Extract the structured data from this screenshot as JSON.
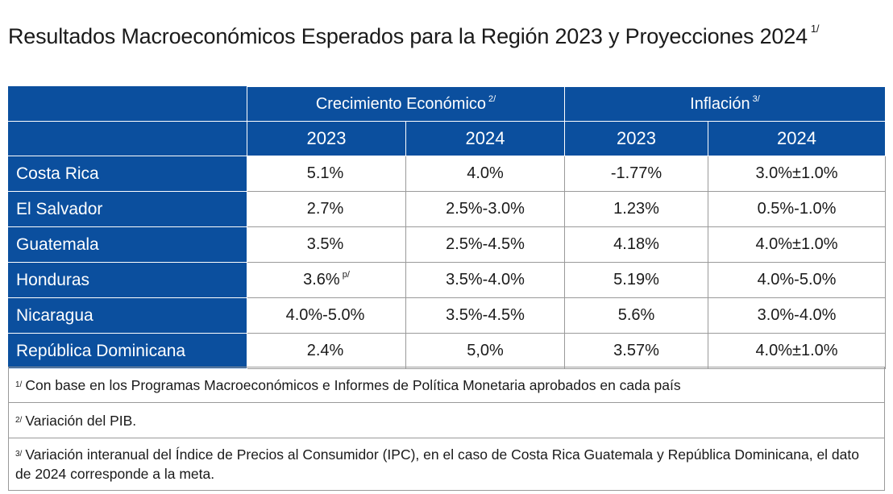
{
  "title": "Resultados Macroeconómicos Esperados para la Región 2023 y Proyecciones 2024",
  "title_note": "1/",
  "headers": {
    "group1": "Crecimiento Económico",
    "group1_note": "2/",
    "group2": "Inflación",
    "group2_note": "3/",
    "years": [
      "2023",
      "2024",
      "2023",
      "2024"
    ]
  },
  "rows": [
    {
      "country": "Costa Rica",
      "g2023": "5.1%",
      "g2023_note": "",
      "g2024": "4.0%",
      "i2023": "-1.77%",
      "i2024": "3.0%±1.0%"
    },
    {
      "country": "El Salvador",
      "g2023": "2.7%",
      "g2023_note": "",
      "g2024": "2.5%-3.0%",
      "i2023": "1.23%",
      "i2024": "0.5%-1.0%"
    },
    {
      "country": "Guatemala",
      "g2023": "3.5%",
      "g2023_note": "",
      "g2024": "2.5%-4.5%",
      "i2023": "4.18%",
      "i2024": "4.0%±1.0%"
    },
    {
      "country": "Honduras",
      "g2023": "3.6%",
      "g2023_note": "p/",
      "g2024": "3.5%-4.0%",
      "i2023": "5.19%",
      "i2024": "4.0%-5.0%"
    },
    {
      "country": "Nicaragua",
      "g2023": "4.0%-5.0%",
      "g2023_note": "",
      "g2024": "3.5%-4.5%",
      "i2023": "5.6%",
      "i2024": "3.0%-4.0%"
    },
    {
      "country": "República Dominicana",
      "g2023": "2.4%",
      "g2023_note": "",
      "g2024": "5,0%",
      "i2023": "3.57%",
      "i2024": "4.0%±1.0%"
    }
  ],
  "notes": [
    {
      "mark": "1/",
      "text": "Con base en los Programas Macroeconómicos e Informes de Política Monetaria aprobados en cada país"
    },
    {
      "mark": "2/",
      "text": "Variación del PIB."
    },
    {
      "mark": "3/",
      "text": "Variación interanual del Índice de Precios al Consumidor (IPC), en el caso de Costa Rica Guatemala y República Dominicana, el dato de 2024 corresponde a la meta."
    }
  ],
  "colors": {
    "header_blue": "#0b4f9e"
  }
}
